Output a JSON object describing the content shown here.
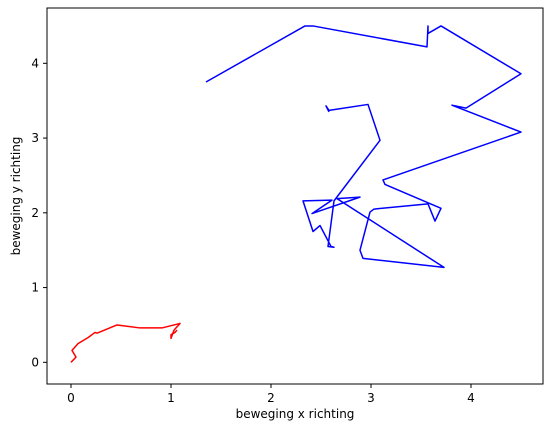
{
  "chart_data": {
    "type": "line",
    "x_label": "beweging x richting",
    "y_label": "beweging y richting",
    "xlim": [
      -0.24,
      4.72
    ],
    "ylim": [
      -0.29,
      4.74
    ],
    "xticks": [
      0,
      1,
      2,
      3,
      4
    ],
    "yticks": [
      0,
      1,
      2,
      3,
      4
    ],
    "series": [
      {
        "color": "#ff0000",
        "x": [
          0,
          0.05,
          0.01,
          0.07,
          0.17,
          0.24,
          0.26,
          0.46,
          0.69,
          0.91,
          1.09,
          1.03,
          1.0,
          1.0,
          1.04,
          1.06
        ],
        "values": [
          0,
          0.07,
          0.16,
          0.25,
          0.33,
          0.4,
          0.39,
          0.5,
          0.46,
          0.46,
          0.52,
          0.43,
          0.32,
          0.37,
          0.4,
          0.43
        ]
      },
      {
        "color": "#0000ff",
        "x": [
          1.35,
          2.34,
          2.42,
          3.56,
          3.57,
          3.57,
          3.7,
          4.5,
          3.95,
          3.81,
          4.5,
          3.12,
          3.14,
          3.7,
          3.64,
          3.57,
          3.03,
          2.99,
          2.89,
          2.92,
          3.73,
          2.66,
          2.89,
          2.41,
          2.61,
          2.32,
          2.42,
          2.49,
          2.6,
          2.63,
          2.57,
          2.63,
          3.09,
          2.97,
          2.58,
          2.55,
          2.58
        ],
        "values": [
          3.75,
          4.5,
          4.5,
          4.22,
          4.5,
          4.4,
          4.5,
          3.86,
          3.4,
          3.44,
          3.08,
          2.44,
          2.38,
          2.06,
          1.89,
          2.12,
          2.05,
          2.01,
          1.5,
          1.39,
          1.27,
          2.19,
          2.21,
          1.99,
          2.17,
          2.16,
          1.75,
          1.83,
          1.55,
          1.54,
          1.55,
          2.16,
          2.97,
          3.45,
          3.37,
          3.43,
          3.35
        ]
      }
    ]
  }
}
